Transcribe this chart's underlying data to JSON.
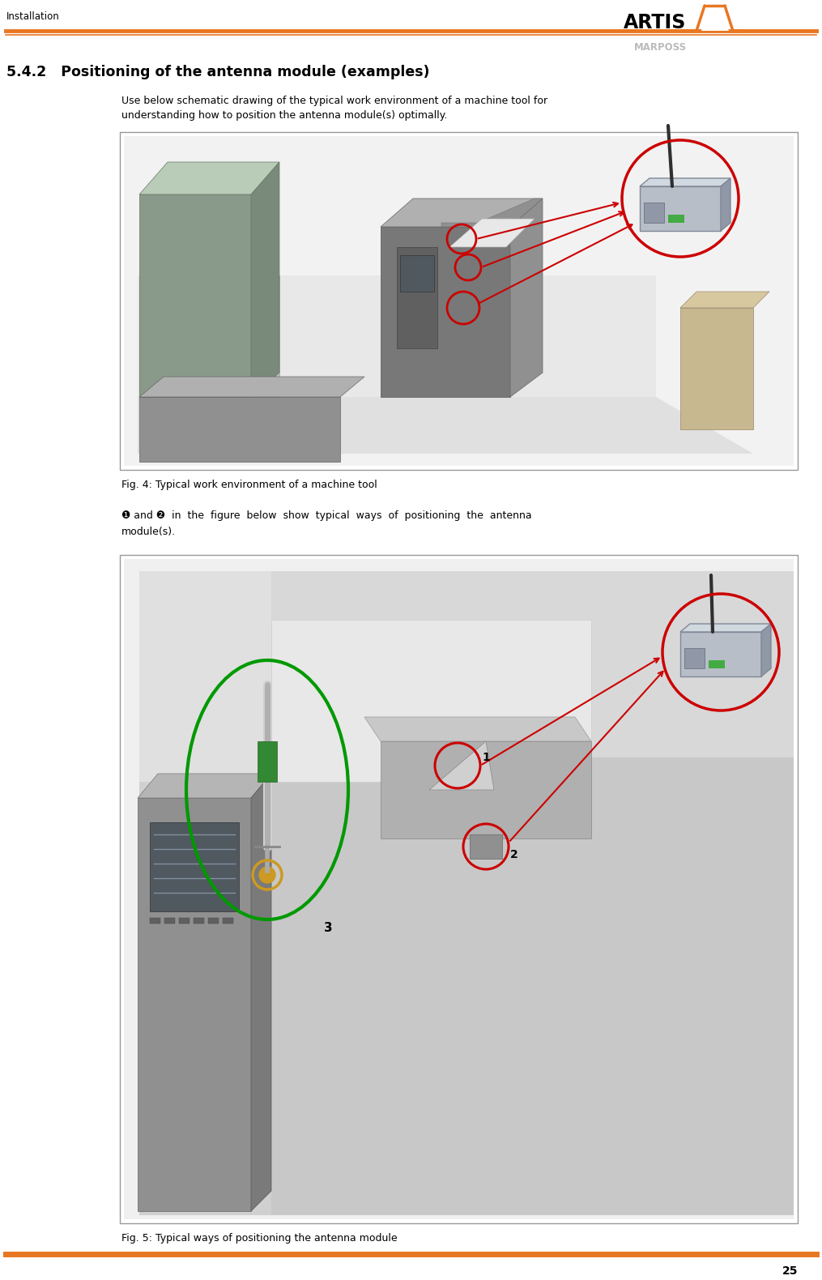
{
  "page_number": "25",
  "header_left": "Installation",
  "section_title": "5.4.2   Positioning of the antenna module (examples)",
  "para1_line1": "Use below schematic drawing of the typical work environment of a machine tool for",
  "para1_line2": "understanding how to position the antenna module(s) optimally.",
  "fig1_caption": "Fig. 4: Typical work environment of a machine tool",
  "para2_line1": "❶ and ❷  in  the  figure  below  show  typical  ways  of  positioning  the  antenna",
  "para2_line2": "module(s).",
  "fig2_caption": "Fig. 5: Typical ways of positioning the antenna module",
  "orange": "#E87722",
  "red": "#CC0000",
  "green": "#009900",
  "bg": "#ffffff",
  "black": "#000000",
  "gray_light": "#e8e8e8",
  "gray_mid": "#aaaaaa",
  "indent": 0.148
}
